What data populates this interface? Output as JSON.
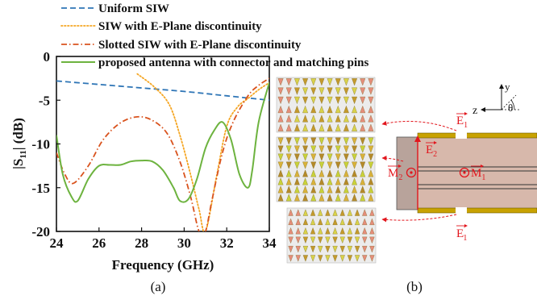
{
  "figure": {
    "panel_a_label": "(a)",
    "panel_b_label": "(b)"
  },
  "chart_data": {
    "type": "line",
    "xlabel": "Frequency (GHz)",
    "ylabel": "|S11| (dB)",
    "ylabel_main": "|S",
    "ylabel_sub": "11",
    "ylabel_rest": "| (dB)",
    "xlim": [
      24,
      34
    ],
    "ylim": [
      -20,
      0
    ],
    "xticks": [
      24,
      26,
      28,
      30,
      32,
      34
    ],
    "yticks": [
      0,
      -5,
      -10,
      -15,
      -20
    ],
    "grid": false,
    "legend_position": "top",
    "series": [
      {
        "name": "Uniform SIW",
        "color": "#2e75b6",
        "dash": "dashed",
        "x": [
          24,
          26,
          28,
          30,
          32,
          34
        ],
        "y": [
          -2.8,
          -3.2,
          -3.6,
          -4.0,
          -4.5,
          -5.0
        ]
      },
      {
        "name": "SIW with E-Plane discontinuity",
        "color": "#f5a623",
        "dash": "dotted",
        "x": [
          27.8,
          28.6,
          29.3,
          29.8,
          30.3,
          30.7,
          31.0,
          31.5,
          32.0,
          32.5,
          33.0,
          33.5,
          34.0
        ],
        "y": [
          -2.0,
          -3.5,
          -5.5,
          -9.0,
          -13.5,
          -17.5,
          -20.0,
          -14.0,
          -8.0,
          -5.8,
          -4.8,
          -3.8,
          -3.0
        ]
      },
      {
        "name": "Slotted SIW  with E-Plane discontinuity",
        "color": "#d9531e",
        "dash": "dashdot",
        "x": [
          24.0,
          24.4,
          24.8,
          25.5,
          26.2,
          27.0,
          27.8,
          28.5,
          29.2,
          29.8,
          30.3,
          30.7,
          31.0,
          31.3,
          31.8,
          32.3,
          33.0,
          33.5,
          34.0
        ],
        "y": [
          -11.0,
          -13.5,
          -14.5,
          -12.5,
          -9.5,
          -7.6,
          -6.9,
          -7.3,
          -8.8,
          -12.0,
          -16.0,
          -20.0,
          -20.0,
          -16.5,
          -11.0,
          -7.5,
          -4.5,
          -3.3,
          -2.5
        ]
      },
      {
        "name": "proposed antenna with connector and matching pins",
        "color": "#6db33f",
        "dash": "solid",
        "x": [
          24.0,
          24.3,
          24.7,
          25.0,
          25.5,
          26.0,
          26.5,
          27.0,
          27.5,
          28.0,
          28.5,
          29.0,
          29.5,
          29.8,
          30.2,
          30.6,
          31.0,
          31.4,
          31.8,
          32.2,
          32.6,
          33.0,
          33.2,
          33.5,
          34.0
        ],
        "y": [
          -9.0,
          -13.5,
          -16.0,
          -16.5,
          -14.0,
          -12.5,
          -12.4,
          -12.4,
          -12.0,
          -11.9,
          -12.0,
          -13.0,
          -15.0,
          -16.5,
          -16.3,
          -14.0,
          -10.5,
          -8.5,
          -7.5,
          -9.5,
          -13.5,
          -15.0,
          -13.0,
          -7.5,
          -3.0
        ]
      }
    ]
  },
  "field_diagram": {
    "labels": {
      "y_axis": "y",
      "z_axis": "z",
      "theta": "θ",
      "e1": "E",
      "e1_sub": "1",
      "e2": "E",
      "e2_sub": "2",
      "m1": "M",
      "m1_sub": "1",
      "m2": "M",
      "m2_sub": "2",
      "e1p": "E",
      "e1p_sub": "1",
      "e1p_prime": "′"
    },
    "colors": {
      "annotation": "#e2161d",
      "substrate": "#d7b8ab",
      "copper": "#c8a200"
    }
  }
}
